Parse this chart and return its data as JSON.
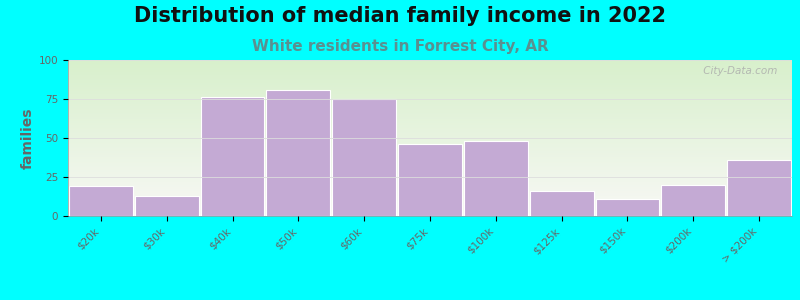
{
  "title": "Distribution of median family income in 2022",
  "subtitle": "White residents in Forrest City, AR",
  "ylabel": "families",
  "categories": [
    "$20k",
    "$30k",
    "$40k",
    "$50k",
    "$60k",
    "$75k",
    "$100k",
    "$125k",
    "$150k",
    "$200k",
    "> $200k"
  ],
  "values": [
    19,
    13,
    76,
    81,
    75,
    46,
    48,
    16,
    11,
    20,
    36
  ],
  "bar_color": "#c4aad4",
  "bar_edge_color": "#ffffff",
  "background_color": "#00ffff",
  "plot_bg_colors": [
    "#d8f0cc",
    "#f0f5ea",
    "#f5f5ee"
  ],
  "title_fontsize": 15,
  "subtitle_fontsize": 11,
  "subtitle_color": "#5a9090",
  "ylabel_fontsize": 10,
  "tick_fontsize": 7.5,
  "ylim": [
    0,
    100
  ],
  "yticks": [
    0,
    25,
    50,
    75,
    100
  ],
  "watermark": " City-Data.com",
  "gridline_color": "#dddddd",
  "tick_color": "#666666",
  "spine_color": "#999999"
}
